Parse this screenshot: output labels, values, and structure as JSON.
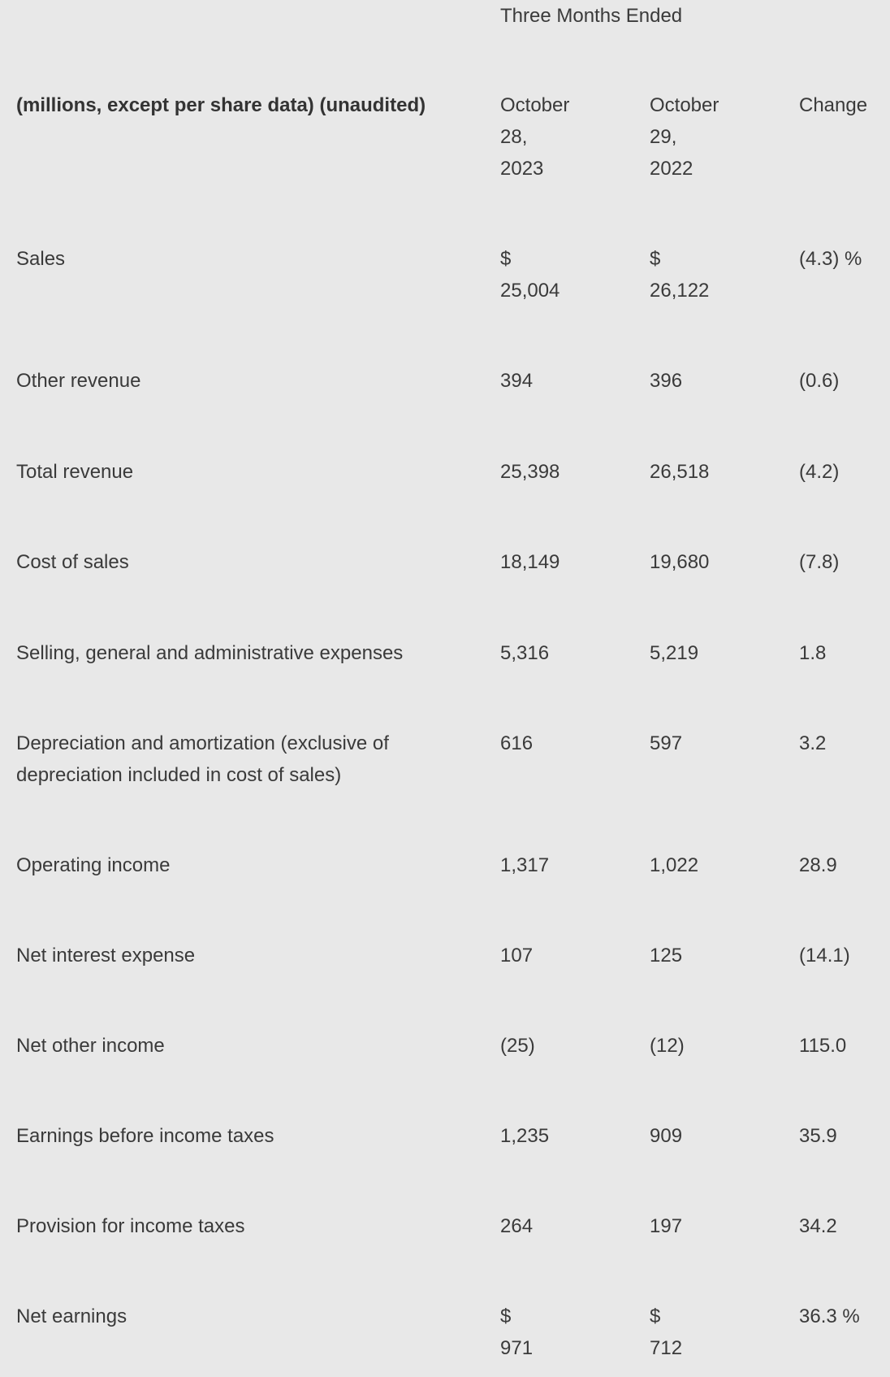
{
  "header": {
    "group_label": "Three Months Ended",
    "label_heading": "(millions, except per share data) (unaudited)",
    "current_period": [
      "October",
      "28,",
      "2023"
    ],
    "prior_period": [
      "October",
      "29,",
      "2022"
    ],
    "change": "Change"
  },
  "rows": [
    {
      "label": "Sales",
      "current": [
        "$",
        "25,004"
      ],
      "prior": [
        "$",
        "26,122"
      ],
      "change": "(4.3) %"
    },
    {
      "label": "Other revenue",
      "current": [
        "394"
      ],
      "prior": [
        "396"
      ],
      "change": "(0.6)"
    },
    {
      "label": "Total revenue",
      "current": [
        "25,398"
      ],
      "prior": [
        "26,518"
      ],
      "change": "(4.2)"
    },
    {
      "label": "Cost of sales",
      "current": [
        "18,149"
      ],
      "prior": [
        "19,680"
      ],
      "change": "(7.8)"
    },
    {
      "label": "Selling, general and administrative expenses",
      "current": [
        "5,316"
      ],
      "prior": [
        "5,219"
      ],
      "change": "1.8"
    },
    {
      "label": "Depreciation and amortization (exclusive of depreciation included in cost of sales)",
      "current": [
        "616"
      ],
      "prior": [
        "597"
      ],
      "change": "3.2"
    },
    {
      "label": "Operating income",
      "current": [
        "1,317"
      ],
      "prior": [
        "1,022"
      ],
      "change": "28.9"
    },
    {
      "label": "Net interest expense",
      "current": [
        "107"
      ],
      "prior": [
        "125"
      ],
      "change": "(14.1)"
    },
    {
      "label": "Net other income",
      "current": [
        "(25)"
      ],
      "prior": [
        "(12)"
      ],
      "change": "115.0"
    },
    {
      "label": "Earnings before income taxes",
      "current": [
        "1,235"
      ],
      "prior": [
        "909"
      ],
      "change": "35.9"
    },
    {
      "label": "Provision for income taxes",
      "current": [
        "264"
      ],
      "prior": [
        "197"
      ],
      "change": "34.2"
    },
    {
      "label": "Net earnings",
      "current": [
        "$",
        "971"
      ],
      "prior": [
        "$",
        "712"
      ],
      "change": "36.3 %"
    }
  ]
}
